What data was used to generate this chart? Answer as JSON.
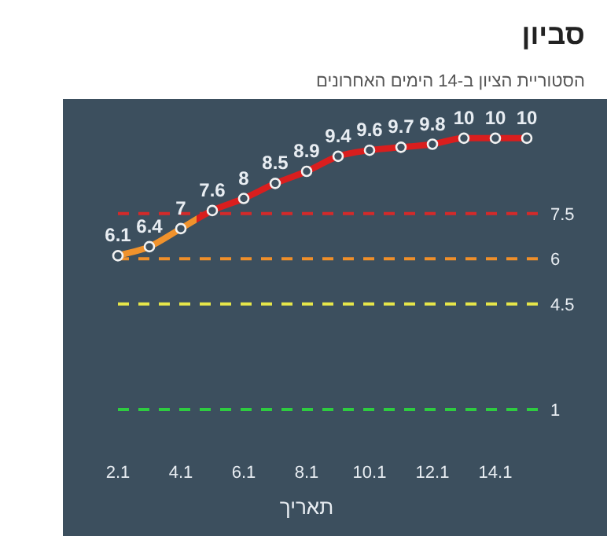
{
  "chart_data": {
    "type": "line",
    "title": "סביון",
    "subtitle": "הסטוריית הציון ב-14 הימים האחרונים",
    "xlabel": "תאריך",
    "categories": [
      "2.1",
      null,
      "4.1",
      null,
      "6.1",
      null,
      "8.1",
      null,
      "10.1",
      null,
      "12.1",
      null,
      "14.1",
      null
    ],
    "series": [
      {
        "values": [
          6.1,
          6.4,
          7,
          7.6,
          8,
          8.5,
          8.9,
          9.4,
          9.6,
          9.7,
          9.8,
          10,
          10,
          10
        ],
        "colors": [
          "#f0922c",
          "#f0922c",
          "#f0922c",
          "#d91e1e",
          "#d91e1e",
          "#d91e1e",
          "#d91e1e",
          "#d91e1e",
          "#d91e1e",
          "#d91e1e",
          "#d91e1e",
          "#d91e1e",
          "#d91e1e",
          "#d91e1e"
        ]
      }
    ],
    "ylim": [
      -3.2,
      11.3
    ],
    "tick_labels": "x",
    "data_labels": true,
    "marker": "circle",
    "grid": false,
    "ref_lines": [
      {
        "axis": "y",
        "value": 7.5,
        "label": "7.5",
        "color": "#d42a2a",
        "line_style": "dashed"
      },
      {
        "axis": "y",
        "value": 6,
        "label": "6",
        "color": "#ef8f2a",
        "line_style": "dashed"
      },
      {
        "axis": "y",
        "value": 4.5,
        "label": "4.5",
        "color": "#e6e64a",
        "line_style": "dashed"
      },
      {
        "axis": "y",
        "value": 1,
        "label": "1",
        "color": "#2ecc40",
        "line_style": "dashed"
      }
    ]
  }
}
